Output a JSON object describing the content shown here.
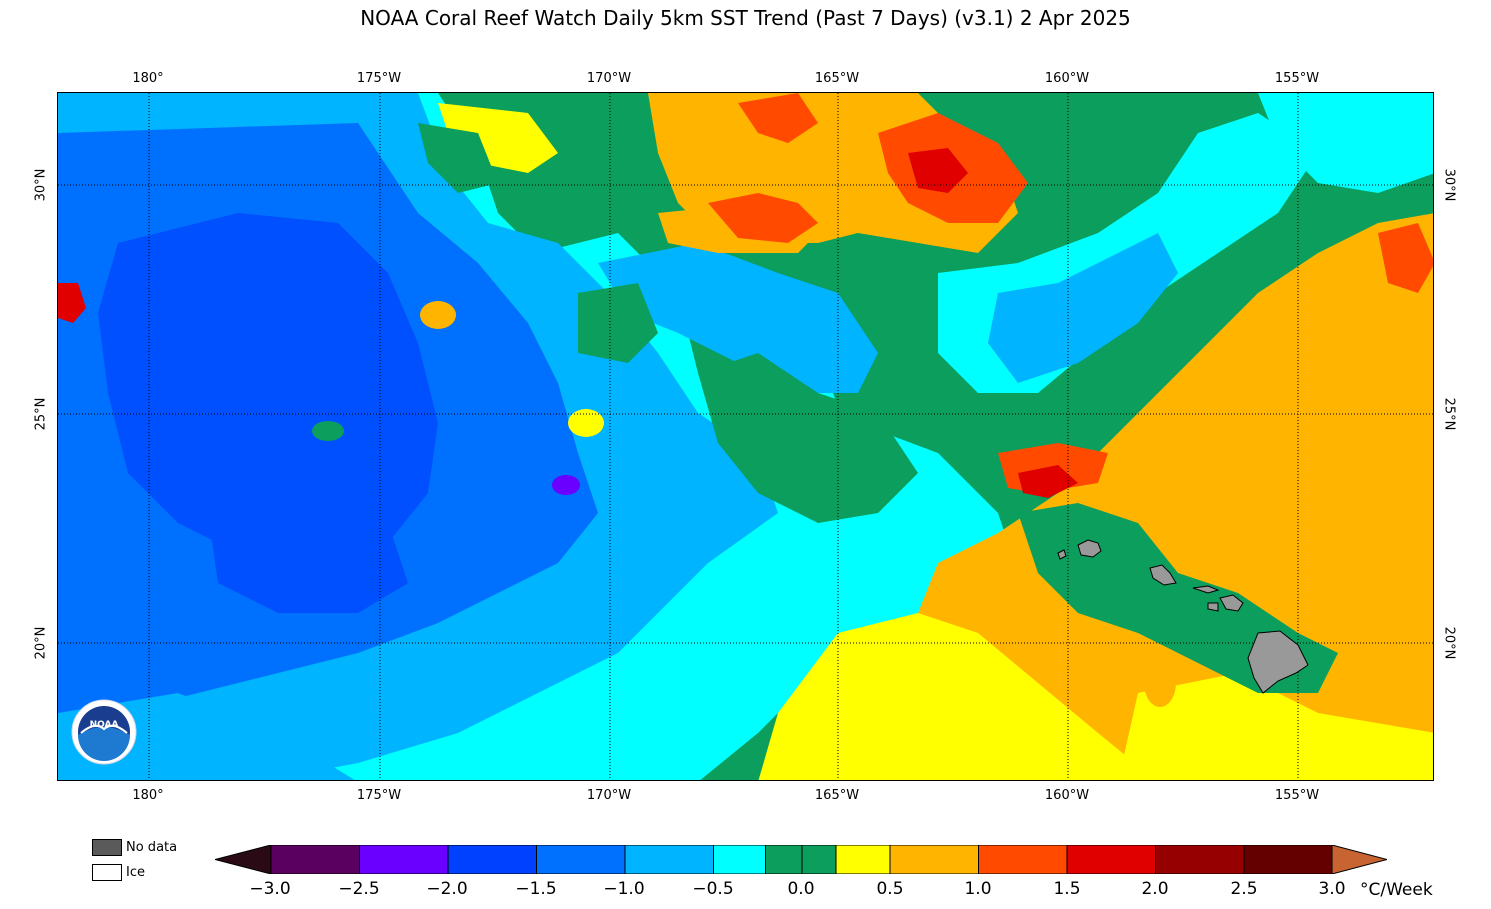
{
  "title": "NOAA Coral Reef Watch Daily 5km SST Trend (Past 7 Days)  (v3.1)   2 Apr 2025",
  "longitude_labels": [
    "180°",
    "175°W",
    "170°W",
    "165°W",
    "160°W",
    "155°W"
  ],
  "latitude_labels": [
    "30°N",
    "25°N",
    "20°N"
  ],
  "legend": {
    "no_data": "No data",
    "ice": "Ice"
  },
  "legend_colors": {
    "no_data": "#5a5a5a",
    "ice": "#ffffff",
    "land": "#999999"
  },
  "colorbar": {
    "unit": "°C/Week",
    "tick_labels": [
      "−3.0",
      "−2.5",
      "−2.0",
      "−1.5",
      "−1.0",
      "−0.5",
      "0.0",
      "0.5",
      "1.0",
      "1.5",
      "2.0",
      "2.5",
      "3.0"
    ],
    "colors": [
      "#2a0a14",
      "#5a0060",
      "#6a00ff",
      "#0040ff",
      "#0070ff",
      "#00b4ff",
      "#00ffff",
      "#0b9e5c",
      "#0b9e5c",
      "#ffff00",
      "#ffb400",
      "#ff4a00",
      "#e00000",
      "#960000",
      "#640000",
      "#c86432"
    ]
  },
  "logo_text": "NOAA",
  "field_colors": {
    "deep_blue": "#0050ff",
    "blue": "#0070ff",
    "sky": "#00b4ff",
    "cyan": "#00ffff",
    "green": "#0b9e5c",
    "yellow": "#ffff00",
    "orange": "#ffb400",
    "red_orange": "#ff4a00",
    "red": "#e00000",
    "dark_red": "#960000",
    "purple": "#6a00ff"
  }
}
